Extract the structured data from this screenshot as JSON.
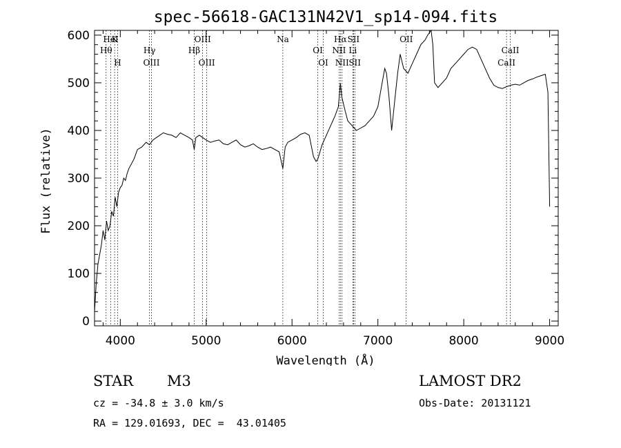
{
  "chart_data": {
    "type": "line",
    "title": "spec-56618-GAC131N42V1_sp14-094.fits",
    "xlabel": "Wavelength (Å)",
    "ylabel": "Flux (relative)",
    "xlim": [
      3700,
      9100
    ],
    "ylim": [
      -10,
      610
    ],
    "xticks": [
      4000,
      5000,
      6000,
      7000,
      8000,
      9000
    ],
    "yticks": [
      0,
      100,
      200,
      300,
      400,
      500,
      600
    ],
    "grid": false,
    "series": [
      {
        "x": [
          3700,
          3720,
          3740,
          3760,
          3780,
          3800,
          3820,
          3840,
          3860,
          3880,
          3900,
          3920,
          3940,
          3960,
          3980,
          4000,
          4020,
          4040,
          4060,
          4080,
          4100,
          4130,
          4160,
          4200,
          4250,
          4300,
          4340,
          4380,
          4420,
          4460,
          4500,
          4550,
          4600,
          4650,
          4700,
          4750,
          4800,
          4840,
          4861,
          4880,
          4920,
          4960,
          5000,
          5050,
          5100,
          5150,
          5200,
          5250,
          5300,
          5350,
          5400,
          5450,
          5500,
          5550,
          5600,
          5650,
          5700,
          5750,
          5800,
          5850,
          5893,
          5920,
          5950,
          6000,
          6050,
          6100,
          6150,
          6200,
          6250,
          6280,
          6300,
          6350,
          6400,
          6450,
          6500,
          6540,
          6563,
          6580,
          6620,
          6650,
          6700,
          6750,
          6800,
          6850,
          6900,
          6950,
          7000,
          7030,
          7060,
          7080,
          7100,
          7130,
          7160,
          7200,
          7230,
          7260,
          7300,
          7350,
          7400,
          7450,
          7500,
          7550,
          7580,
          7600,
          7620,
          7640,
          7660,
          7700,
          7750,
          7800,
          7850,
          7900,
          7950,
          8000,
          8050,
          8100,
          8150,
          8200,
          8250,
          8300,
          8350,
          8400,
          8450,
          8500,
          8550,
          8600,
          8650,
          8700,
          8750,
          8800,
          8850,
          8900,
          8950,
          8980,
          9000
        ],
        "y": [
          20,
          80,
          120,
          140,
          160,
          190,
          170,
          210,
          190,
          200,
          230,
          220,
          260,
          240,
          270,
          280,
          285,
          300,
          295,
          310,
          320,
          330,
          340,
          360,
          365,
          375,
          370,
          380,
          385,
          390,
          395,
          392,
          390,
          385,
          395,
          390,
          385,
          380,
          360,
          385,
          390,
          385,
          380,
          375,
          378,
          380,
          372,
          370,
          375,
          380,
          370,
          365,
          368,
          372,
          365,
          360,
          362,
          365,
          360,
          355,
          320,
          365,
          375,
          380,
          385,
          392,
          395,
          390,
          345,
          335,
          340,
          370,
          390,
          410,
          430,
          450,
          500,
          470,
          440,
          420,
          410,
          400,
          405,
          410,
          420,
          430,
          450,
          480,
          510,
          530,
          520,
          470,
          400,
          470,
          520,
          560,
          530,
          520,
          540,
          560,
          580,
          590,
          600,
          605,
          610,
          580,
          500,
          490,
          500,
          510,
          530,
          540,
          550,
          560,
          570,
          575,
          570,
          550,
          530,
          510,
          495,
          490,
          488,
          492,
          495,
          497,
          495,
          500,
          505,
          508,
          512,
          515,
          518,
          480,
          240
        ]
      }
    ],
    "line_labels": [
      {
        "label": "HeI",
        "x": 3889
      },
      {
        "label": "Hθ",
        "x": 3835
      },
      {
        "label": "H",
        "x": 3969
      },
      {
        "label": "K",
        "x": 3934
      },
      {
        "label": "Hγ",
        "x": 4340
      },
      {
        "label": "OIII",
        "x": 4363
      },
      {
        "label": "OIII",
        "x": 4959
      },
      {
        "label": "Hβ",
        "x": 4861
      },
      {
        "label": "OIII",
        "x": 5007
      },
      {
        "label": "Na",
        "x": 5893
      },
      {
        "label": "OI",
        "x": 6300
      },
      {
        "label": "OI",
        "x": 6364
      },
      {
        "label": "Hα",
        "x": 6563
      },
      {
        "label": "NII",
        "x": 6548
      },
      {
        "label": "NII",
        "x": 6583
      },
      {
        "label": "SII",
        "x": 6716
      },
      {
        "label": "Li",
        "x": 6708
      },
      {
        "label": "SII",
        "x": 6731
      },
      {
        "label": "OII",
        "x": 7330
      },
      {
        "label": "CaII",
        "x": 8542
      },
      {
        "label": "CaII",
        "x": 8498
      }
    ]
  },
  "info": {
    "class_label": "STAR",
    "subclass": "M3",
    "cz": "cz = -34.8 ± 3.0 km/s",
    "coords": "RA = 129.01693, DEC =  43.01405",
    "survey": "LAMOST DR2",
    "obs_date": "Obs-Date: 20131121"
  }
}
